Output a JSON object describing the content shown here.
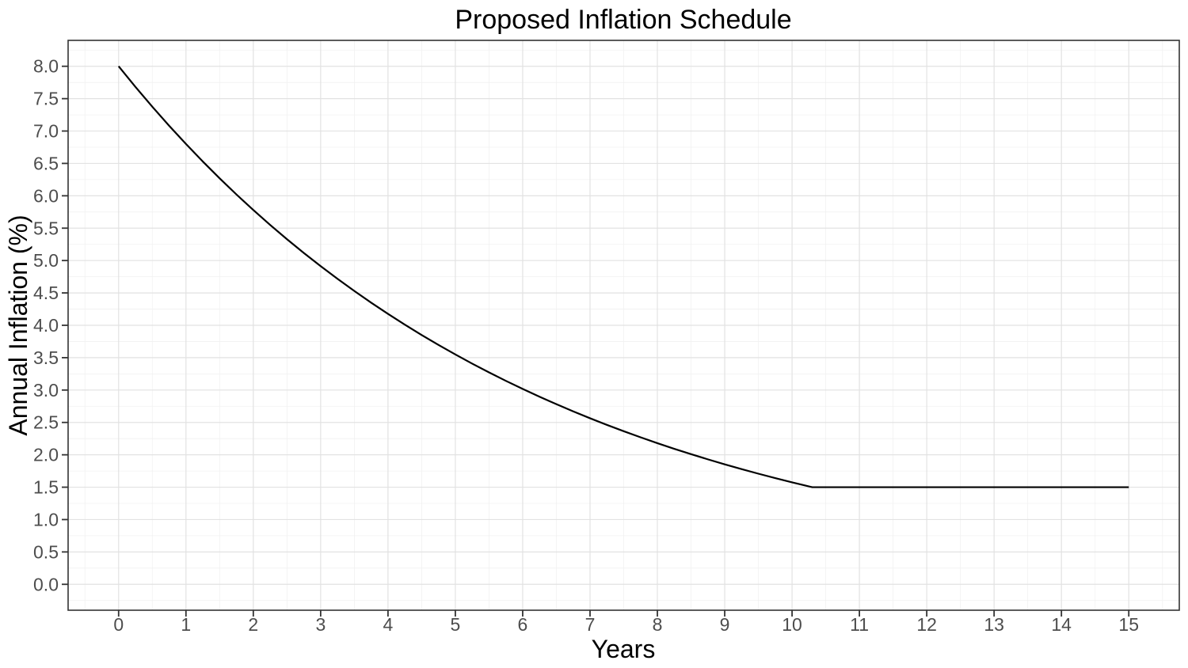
{
  "chart_data": {
    "type": "line",
    "title": "Proposed Inflation Schedule",
    "xlabel": "Years",
    "ylabel": "Annual Inflation (%)",
    "xlim": [
      0,
      15
    ],
    "ylim": [
      0,
      8
    ],
    "grid": "major+minor",
    "legend": "none",
    "x_tick_values": [
      0,
      1,
      2,
      3,
      4,
      5,
      6,
      7,
      8,
      9,
      10,
      11,
      12,
      13,
      14,
      15
    ],
    "x_tick_labels": [
      "0",
      "1",
      "2",
      "3",
      "4",
      "5",
      "6",
      "7",
      "8",
      "9",
      "10",
      "11",
      "12",
      "13",
      "14",
      "15"
    ],
    "y_tick_values": [
      0,
      0.5,
      1,
      1.5,
      2,
      2.5,
      3,
      3.5,
      4,
      4.5,
      5,
      5.5,
      6,
      6.5,
      7,
      7.5,
      8
    ],
    "y_tick_labels": [
      "0.0",
      "0.5",
      "1.0",
      "1.5",
      "2.0",
      "2.5",
      "3.0",
      "3.5",
      "4.0",
      "4.5",
      "5.0",
      "5.5",
      "6.0",
      "6.5",
      "7.0",
      "7.5",
      "8.0"
    ],
    "series": [
      {
        "name": "Annual Inflation",
        "x": [
          0,
          0.25,
          0.5,
          0.75,
          1,
          1.25,
          1.5,
          1.75,
          2,
          2.25,
          2.5,
          2.75,
          3,
          3.25,
          3.5,
          3.75,
          4,
          4.25,
          4.5,
          4.75,
          5,
          5.25,
          5.5,
          5.75,
          6,
          6.25,
          6.5,
          6.75,
          7,
          7.25,
          7.5,
          7.75,
          8,
          8.25,
          8.5,
          8.75,
          9,
          9.25,
          9.5,
          9.75,
          10,
          10.25,
          10.3,
          11,
          12,
          13,
          14,
          15
        ],
        "y": [
          8,
          7.6815,
          7.3756,
          7.0819,
          6.8,
          6.5293,
          6.2693,
          6.0197,
          5.78,
          5.5499,
          5.3289,
          5.1167,
          4.913,
          4.7174,
          4.5296,
          4.3492,
          4.1761,
          4.0098,
          3.8501,
          3.6968,
          3.5496,
          3.4083,
          3.2726,
          3.1423,
          3.0172,
          2.8971,
          2.7817,
          2.671,
          2.5646,
          2.4625,
          2.3645,
          2.2703,
          2.1799,
          2.0931,
          2.0098,
          1.9298,
          1.8529,
          1.7792,
          1.7083,
          1.6403,
          1.575,
          1.5123,
          1.5,
          1.5,
          1.5,
          1.5,
          1.5,
          1.5
        ]
      }
    ],
    "colors": {
      "line": "#000000",
      "grid_major": "#e2e2e2",
      "grid_minor": "#f1f1f1",
      "panel_border": "#333333",
      "tick": "#333333",
      "tick_label": "#4d4d4d",
      "background": "#ffffff"
    }
  }
}
